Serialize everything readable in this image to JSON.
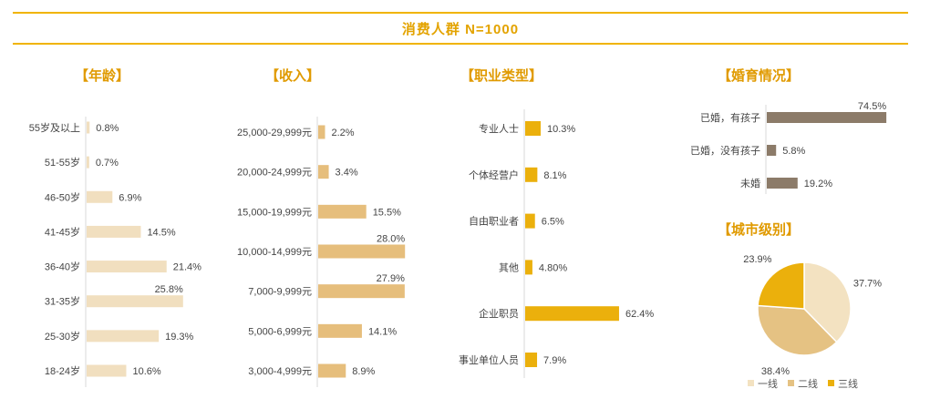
{
  "header": {
    "title": "消费人群 N=1000"
  },
  "colors": {
    "accent": "#f0b400",
    "age_bar": "#f1dfbf",
    "income_bar": "#e6be7c",
    "job_bar": "#ebb00c",
    "marriage_bar": "#8c7b69",
    "city_tier1": "#f3e2c1",
    "city_tier2": "#e5c283",
    "city_tier3": "#ebb00c"
  },
  "chart_data": [
    {
      "type": "bar",
      "title": "【年龄】",
      "categories": [
        "55岁及以上",
        "51-55岁",
        "46-50岁",
        "41-45岁",
        "36-40岁",
        "31-35岁",
        "25-30岁",
        "18-24岁"
      ],
      "values": [
        0.8,
        0.7,
        6.9,
        14.5,
        21.4,
        25.8,
        19.3,
        10.6
      ],
      "labels": [
        "0.8%",
        "0.7%",
        "6.9%",
        "14.5%",
        "21.4%",
        "25.8%",
        "19.3%",
        "10.6%"
      ]
    },
    {
      "type": "bar",
      "title": "【收入】",
      "categories": [
        "25,000-29,999元",
        "20,000-24,999元",
        "15,000-19,999元",
        "10,000-14,999元",
        "7,000-9,999元",
        "5,000-6,999元",
        "3,000-4,999元"
      ],
      "values": [
        2.2,
        3.4,
        15.5,
        28.0,
        27.9,
        14.1,
        8.9
      ],
      "labels": [
        "2.2%",
        "3.4%",
        "15.5%",
        "28.0%",
        "27.9%",
        "14.1%",
        "8.9%"
      ]
    },
    {
      "type": "bar",
      "title": "【职业类型】",
      "categories": [
        "专业人士",
        "个体经营户",
        "自由职业者",
        "其他",
        "企业职员",
        "事业单位人员"
      ],
      "values": [
        10.3,
        8.1,
        6.5,
        4.8,
        62.4,
        7.9
      ],
      "labels": [
        "10.3%",
        "8.1%",
        "6.5%",
        "4.80%",
        "62.4%",
        "7.9%"
      ]
    },
    {
      "type": "bar",
      "title": "【婚育情况】",
      "categories": [
        "已婚，有孩子",
        "已婚，没有孩子",
        "未婚"
      ],
      "values": [
        74.5,
        5.8,
        19.2
      ],
      "labels": [
        "74.5%",
        "5.8%",
        "19.2%"
      ]
    },
    {
      "type": "pie",
      "title": "【城市级别】",
      "categories": [
        "一线",
        "二线",
        "三线"
      ],
      "values": [
        37.7,
        38.4,
        23.9
      ],
      "labels": [
        "37.7%",
        "38.4%",
        "23.9%"
      ],
      "legend": "bottom"
    }
  ]
}
